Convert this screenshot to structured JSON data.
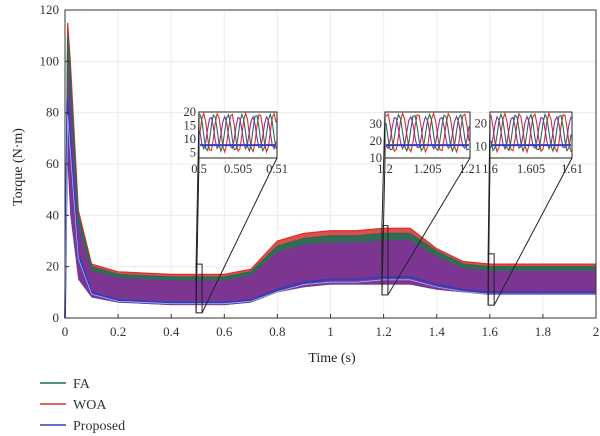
{
  "chart_data": {
    "type": "line",
    "title": "",
    "xlabel": "Time (s)",
    "ylabel": "Torque (N·m)",
    "xlim": [
      0,
      2
    ],
    "ylim": [
      0,
      120
    ],
    "x_ticks": [
      "0",
      "0.2",
      "0.4",
      "0.6",
      "0.8",
      "1",
      "1.2",
      "1.4",
      "1.6",
      "1.8",
      "2"
    ],
    "y_ticks": [
      "0",
      "20",
      "40",
      "60",
      "80",
      "100",
      "120"
    ],
    "grid": true,
    "legend_position": "bottom-left",
    "x": [
      0,
      0.01,
      0.02,
      0.05,
      0.1,
      0.2,
      0.4,
      0.6,
      0.7,
      0.8,
      0.9,
      1.0,
      1.1,
      1.2,
      1.3,
      1.4,
      1.5,
      1.6,
      1.8,
      2.0
    ],
    "series": [
      {
        "name": "FA",
        "color": "#1f6f55",
        "upper": [
          0,
          110,
          95,
          40,
          20,
          17,
          16,
          16,
          18,
          28,
          31,
          32,
          32,
          33,
          33,
          26,
          21,
          20,
          20,
          20
        ],
        "lower": [
          0,
          60,
          40,
          15,
          8,
          6,
          5,
          5,
          6,
          10,
          12,
          13,
          13,
          13,
          13,
          11,
          10,
          9,
          9,
          9
        ]
      },
      {
        "name": "WOA",
        "color": "#d8302a",
        "upper": [
          0,
          115,
          100,
          42,
          21,
          18,
          17,
          17,
          19,
          30,
          33,
          34,
          34,
          35,
          35,
          27,
          22,
          21,
          21,
          21
        ],
        "lower": [
          0,
          62,
          42,
          16,
          9,
          7,
          6,
          6,
          7,
          11,
          13,
          14,
          14,
          14,
          14,
          12,
          10,
          10,
          10,
          10
        ]
      },
      {
        "name": "Proposed",
        "color": "#2f3fb8",
        "values": [
          0,
          85,
          70,
          25,
          10,
          7,
          6,
          6,
          7,
          11,
          14,
          15,
          15,
          16,
          16,
          13,
          11,
          10,
          10,
          10
        ]
      }
    ],
    "insets": [
      {
        "x_ticks": [
          "0.5",
          "0.505",
          "0.51"
        ],
        "y_ticks": [
          "5",
          "10",
          "15",
          "20"
        ],
        "ylim": [
          3,
          20
        ]
      },
      {
        "x_ticks": [
          "1.2",
          "1.205",
          "1.21"
        ],
        "y_ticks": [
          "10",
          "20",
          "30"
        ],
        "ylim": [
          10,
          37
        ]
      },
      {
        "x_ticks": [
          "1.6",
          "1.605",
          "1.61"
        ],
        "y_ticks": [
          "10",
          "20"
        ],
        "ylim": [
          5,
          25
        ]
      }
    ]
  },
  "legend": {
    "items": [
      {
        "label": "FA",
        "color": "#1f6f55"
      },
      {
        "label": "WOA",
        "color": "#d8302a"
      },
      {
        "label": "Proposed",
        "color": "#2f3fb8"
      }
    ]
  }
}
